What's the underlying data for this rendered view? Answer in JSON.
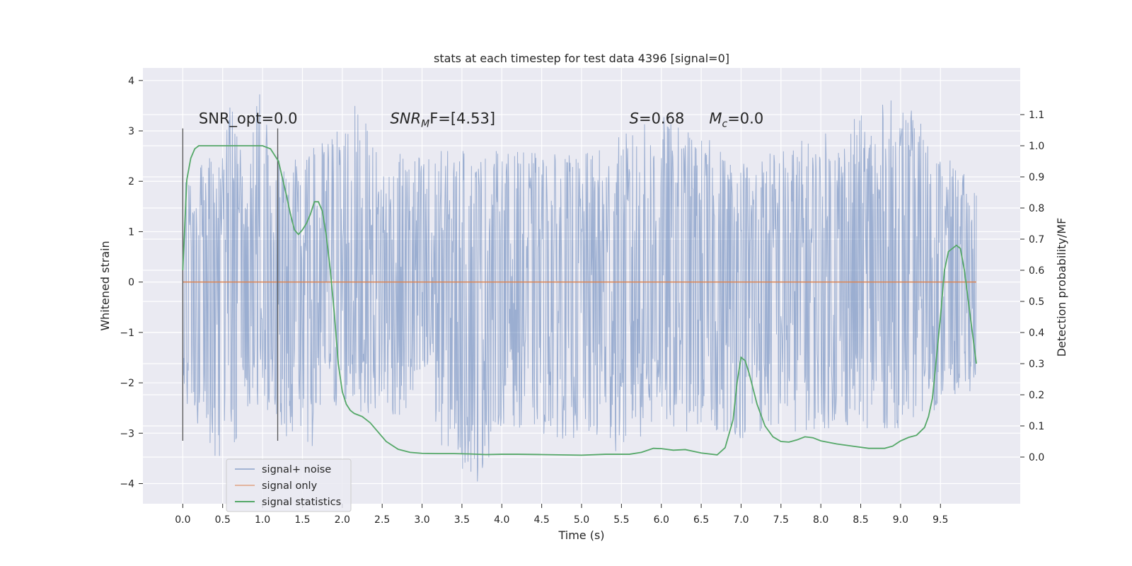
{
  "chart_data": {
    "type": "line",
    "title": "stats at each timestep for test data 4396 [signal=0]",
    "xlabel": "Time (s)",
    "ylabel": "Whitened strain",
    "y2label": "Detection probability/MF",
    "xlim": [
      -0.5,
      10.5
    ],
    "ylim": [
      -4.4,
      4.25
    ],
    "y2lim": [
      -0.15,
      1.25
    ],
    "xticks": [
      0.0,
      0.5,
      1.0,
      1.5,
      2.0,
      2.5,
      3.0,
      3.5,
      4.0,
      4.5,
      5.0,
      5.5,
      6.0,
      6.5,
      7.0,
      7.5,
      8.0,
      8.5,
      9.0,
      9.5
    ],
    "xtick_labels": [
      "0.0",
      "0.5",
      "1.0",
      "1.5",
      "2.0",
      "2.5",
      "3.0",
      "3.5",
      "4.0",
      "4.5",
      "5.0",
      "5.5",
      "6.0",
      "6.5",
      "7.0",
      "7.5",
      "8.0",
      "8.5",
      "9.0",
      "9.5"
    ],
    "yticks": [
      -4,
      -3,
      -2,
      -1,
      0,
      1,
      2,
      3,
      4
    ],
    "ytick_labels": [
      "−4",
      "−3",
      "−2",
      "−1",
      "0",
      "1",
      "2",
      "3",
      "4"
    ],
    "y2ticks": [
      0.0,
      0.1,
      0.2,
      0.3,
      0.4,
      0.5,
      0.6,
      0.7,
      0.8,
      0.9,
      1.0,
      1.1
    ],
    "y2tick_labels": [
      "0.0",
      "0.1",
      "0.2",
      "0.3",
      "0.4",
      "0.5",
      "0.6",
      "0.7",
      "0.8",
      "0.9",
      "1.0",
      "1.1"
    ],
    "grid": true,
    "legend_position": "lower-left",
    "noise": {
      "name": "signal+ noise",
      "color": "#4c72b0",
      "x_start": 0.0,
      "x_end": 9.95,
      "upper_envelope": [
        [
          0.0,
          2.2
        ],
        [
          0.25,
          2.5
        ],
        [
          0.5,
          2.6
        ],
        [
          0.6,
          3.9
        ],
        [
          0.75,
          2.5
        ],
        [
          0.97,
          3.9
        ],
        [
          1.2,
          2.5
        ],
        [
          1.5,
          2.4
        ],
        [
          2.15,
          3.6
        ],
        [
          2.5,
          2.5
        ],
        [
          3.0,
          2.6
        ],
        [
          4.0,
          2.6
        ],
        [
          5.0,
          2.5
        ],
        [
          6.0,
          3.3
        ],
        [
          7.0,
          2.5
        ],
        [
          8.0,
          2.9
        ],
        [
          9.0,
          3.7
        ],
        [
          9.5,
          2.6
        ],
        [
          9.95,
          1.9
        ]
      ],
      "lower_envelope": [
        [
          0.0,
          -2.3
        ],
        [
          0.4,
          -3.6
        ],
        [
          0.65,
          -3.3
        ],
        [
          1.0,
          -2.4
        ],
        [
          1.5,
          -3.5
        ],
        [
          2.0,
          -2.5
        ],
        [
          3.0,
          -2.8
        ],
        [
          3.7,
          -4.05
        ],
        [
          4.0,
          -2.8
        ],
        [
          5.0,
          -3.2
        ],
        [
          5.55,
          -3.4
        ],
        [
          6.0,
          -2.9
        ],
        [
          7.0,
          -3.1
        ],
        [
          8.0,
          -2.9
        ],
        [
          9.0,
          -2.9
        ],
        [
          9.95,
          -2.1
        ]
      ]
    },
    "signal_only": {
      "name": "signal only",
      "color": "#dd8452",
      "x": [
        0.0,
        9.95
      ],
      "y": [
        0.0,
        0.0
      ]
    },
    "statistics": {
      "name": "signal statistics",
      "color": "#55a868",
      "x": [
        0.0,
        0.05,
        0.1,
        0.15,
        0.2,
        0.3,
        0.4,
        0.6,
        0.8,
        1.0,
        1.1,
        1.2,
        1.3,
        1.35,
        1.4,
        1.45,
        1.5,
        1.55,
        1.6,
        1.65,
        1.7,
        1.75,
        1.8,
        1.85,
        1.9,
        1.95,
        2.0,
        2.05,
        2.1,
        2.15,
        2.25,
        2.35,
        2.45,
        2.55,
        2.7,
        2.85,
        3.0,
        3.2,
        3.4,
        3.6,
        3.8,
        4.0,
        4.2,
        4.5,
        5.0,
        5.3,
        5.6,
        5.75,
        5.9,
        6.0,
        6.15,
        6.3,
        6.5,
        6.7,
        6.8,
        6.9,
        6.95,
        7.0,
        7.05,
        7.1,
        7.2,
        7.3,
        7.4,
        7.5,
        7.6,
        7.7,
        7.8,
        7.9,
        8.0,
        8.2,
        8.4,
        8.6,
        8.8,
        8.9,
        9.0,
        9.1,
        9.2,
        9.3,
        9.35,
        9.4,
        9.5,
        9.55,
        9.6,
        9.65,
        9.7,
        9.75,
        9.8,
        9.85,
        9.9,
        9.95
      ],
      "y": [
        0.6,
        0.89,
        0.96,
        0.99,
        1.0,
        1.0,
        1.0,
        1.0,
        1.0,
        1.0,
        0.99,
        0.95,
        0.84,
        0.78,
        0.73,
        0.715,
        0.73,
        0.75,
        0.78,
        0.82,
        0.82,
        0.79,
        0.71,
        0.6,
        0.46,
        0.3,
        0.21,
        0.17,
        0.15,
        0.14,
        0.13,
        0.11,
        0.08,
        0.05,
        0.025,
        0.015,
        0.012,
        0.011,
        0.011,
        0.01,
        0.008,
        0.009,
        0.009,
        0.008,
        0.006,
        0.009,
        0.009,
        0.015,
        0.028,
        0.027,
        0.022,
        0.024,
        0.013,
        0.007,
        0.03,
        0.12,
        0.24,
        0.32,
        0.31,
        0.27,
        0.17,
        0.1,
        0.065,
        0.05,
        0.048,
        0.055,
        0.065,
        0.062,
        0.052,
        0.042,
        0.035,
        0.028,
        0.028,
        0.035,
        0.052,
        0.063,
        0.07,
        0.095,
        0.13,
        0.19,
        0.45,
        0.6,
        0.66,
        0.67,
        0.68,
        0.67,
        0.6,
        0.5,
        0.4,
        0.3
      ]
    },
    "vlines": [
      0.0,
      1.19
    ],
    "vline_range": [
      -3.15,
      3.05
    ],
    "annotations": [
      {
        "id": "snr-opt",
        "x": 0.2,
        "y": 3.15,
        "text": "SNR_opt=0.0"
      },
      {
        "id": "snr-mf",
        "x": 2.6,
        "y": 3.15,
        "parts": [
          "SNR",
          "M",
          "F=[4.53]"
        ]
      },
      {
        "id": "s-value",
        "x": 5.6,
        "y": 3.15,
        "parts": [
          "S",
          "=0.68"
        ]
      },
      {
        "id": "mc-value",
        "x": 6.6,
        "y": 3.15,
        "parts": [
          "M",
          "c",
          "=0.0"
        ]
      }
    ]
  }
}
